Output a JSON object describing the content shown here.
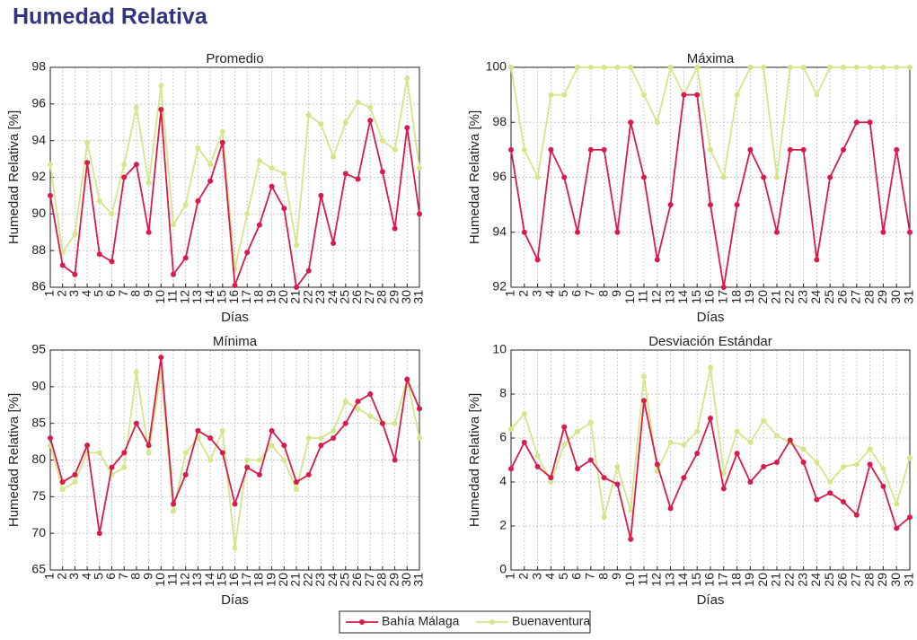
{
  "title": "Humedad Relativa",
  "chart_data": [
    {
      "type": "line",
      "title": "Promedio",
      "xlabel": "Días",
      "ylabel": "Humedad Relativa [%]",
      "x": [
        1,
        2,
        3,
        4,
        5,
        6,
        7,
        8,
        9,
        10,
        11,
        12,
        13,
        14,
        15,
        16,
        17,
        18,
        19,
        20,
        21,
        22,
        23,
        24,
        25,
        26,
        27,
        28,
        29,
        30,
        31
      ],
      "xlim": [
        1,
        31
      ],
      "ylim": [
        86,
        98
      ],
      "yticks": [
        86,
        88,
        90,
        92,
        94,
        96,
        98
      ],
      "grid": true,
      "series": [
        {
          "name": "Bahía Málaga",
          "color": "#d81b4a",
          "values": [
            91.0,
            87.2,
            86.7,
            92.8,
            87.8,
            87.4,
            92.0,
            92.7,
            89.0,
            95.7,
            86.7,
            87.6,
            90.7,
            91.8,
            93.9,
            86.1,
            87.9,
            89.4,
            91.5,
            90.3,
            86.0,
            86.9,
            91.0,
            88.4,
            92.2,
            91.9,
            95.1,
            92.3,
            89.2,
            94.7,
            90.0
          ]
        },
        {
          "name": "Buenaventura",
          "color": "#d4e68a",
          "values": [
            92.7,
            87.9,
            88.9,
            93.9,
            90.7,
            90.0,
            92.7,
            95.8,
            91.7,
            97.0,
            89.4,
            90.5,
            93.6,
            92.7,
            94.5,
            87.0,
            90.0,
            92.9,
            92.5,
            92.2,
            88.3,
            95.4,
            94.9,
            93.1,
            95.0,
            96.1,
            95.8,
            94.0,
            93.5,
            97.4,
            92.5
          ]
        }
      ]
    },
    {
      "type": "line",
      "title": "Máxima",
      "xlabel": "Días",
      "ylabel": "Humedad Relativa [%]",
      "x": [
        1,
        2,
        3,
        4,
        5,
        6,
        7,
        8,
        9,
        10,
        11,
        12,
        13,
        14,
        15,
        16,
        17,
        18,
        19,
        20,
        21,
        22,
        23,
        24,
        25,
        26,
        27,
        28,
        29,
        30,
        31
      ],
      "xlim": [
        1,
        31
      ],
      "ylim": [
        92,
        100
      ],
      "yticks": [
        92,
        94,
        96,
        98,
        100
      ],
      "grid": true,
      "series": [
        {
          "name": "Bahía Málaga",
          "color": "#d81b4a",
          "values": [
            97,
            94,
            93,
            97,
            96,
            94,
            97,
            97,
            94,
            98,
            96,
            93,
            95,
            99,
            99,
            95,
            92,
            95,
            97,
            96,
            94,
            97,
            97,
            93,
            96,
            97,
            98,
            98,
            94,
            97,
            94
          ]
        },
        {
          "name": "Buenaventura",
          "color": "#d4e68a",
          "values": [
            100,
            97,
            96,
            99,
            99,
            100,
            100,
            100,
            100,
            100,
            99,
            98,
            100,
            99,
            100,
            97,
            96,
            99,
            100,
            100,
            96,
            100,
            100,
            99,
            100,
            100,
            100,
            100,
            100,
            100,
            100
          ]
        }
      ]
    },
    {
      "type": "line",
      "title": "Mínima",
      "xlabel": "Días",
      "ylabel": "Humedad Relativa [%]",
      "x": [
        1,
        2,
        3,
        4,
        5,
        6,
        7,
        8,
        9,
        10,
        11,
        12,
        13,
        14,
        15,
        16,
        17,
        18,
        19,
        20,
        21,
        22,
        23,
        24,
        25,
        26,
        27,
        28,
        29,
        30,
        31
      ],
      "xlim": [
        1,
        31
      ],
      "ylim": [
        65,
        95
      ],
      "yticks": [
        65,
        70,
        75,
        80,
        85,
        90,
        95
      ],
      "grid": true,
      "series": [
        {
          "name": "Bahía Málaga",
          "color": "#d81b4a",
          "values": [
            83,
            77,
            78,
            82,
            70,
            79,
            81,
            85,
            82,
            94,
            74,
            78,
            84,
            83,
            81,
            74,
            79,
            78,
            84,
            82,
            77,
            78,
            82,
            83,
            85,
            88,
            89,
            85,
            80,
            91,
            87
          ]
        },
        {
          "name": "Buenaventura",
          "color": "#d4e68a",
          "values": [
            82,
            76,
            77,
            81,
            81,
            78,
            79,
            92,
            81,
            92,
            73,
            81,
            83,
            80,
            84,
            68,
            80,
            80,
            82,
            80,
            76,
            83,
            83,
            84,
            88,
            87,
            86,
            85,
            85,
            91,
            83
          ]
        }
      ]
    },
    {
      "type": "line",
      "title": "Desviación Estándar",
      "xlabel": "Días",
      "ylabel": "Humedad Relativa [%]",
      "x": [
        1,
        2,
        3,
        4,
        5,
        6,
        7,
        8,
        9,
        10,
        11,
        12,
        13,
        14,
        15,
        16,
        17,
        18,
        19,
        20,
        21,
        22,
        23,
        24,
        25,
        26,
        27,
        28,
        29,
        30,
        31
      ],
      "xlim": [
        1,
        31
      ],
      "ylim": [
        0,
        10
      ],
      "yticks": [
        0,
        2,
        4,
        6,
        8,
        10
      ],
      "grid": true,
      "series": [
        {
          "name": "Bahía Málaga",
          "color": "#d81b4a",
          "values": [
            4.6,
            5.8,
            4.7,
            4.2,
            6.5,
            4.6,
            5.0,
            4.2,
            3.9,
            1.4,
            7.7,
            4.8,
            2.8,
            4.2,
            5.3,
            6.9,
            3.7,
            5.3,
            4.0,
            4.7,
            4.9,
            5.9,
            4.9,
            3.2,
            3.5,
            3.1,
            2.5,
            4.8,
            3.8,
            1.9,
            2.4
          ]
        },
        {
          "name": "Buenaventura",
          "color": "#d4e68a",
          "values": [
            6.4,
            7.1,
            5.2,
            4.0,
            5.7,
            6.3,
            6.7,
            2.4,
            4.7,
            2.7,
            8.8,
            4.5,
            5.8,
            5.7,
            6.3,
            9.2,
            4.4,
            6.3,
            5.8,
            6.8,
            6.1,
            5.8,
            5.5,
            4.9,
            4.0,
            4.7,
            4.8,
            5.5,
            4.6,
            3.0,
            5.1
          ]
        }
      ]
    }
  ]
}
